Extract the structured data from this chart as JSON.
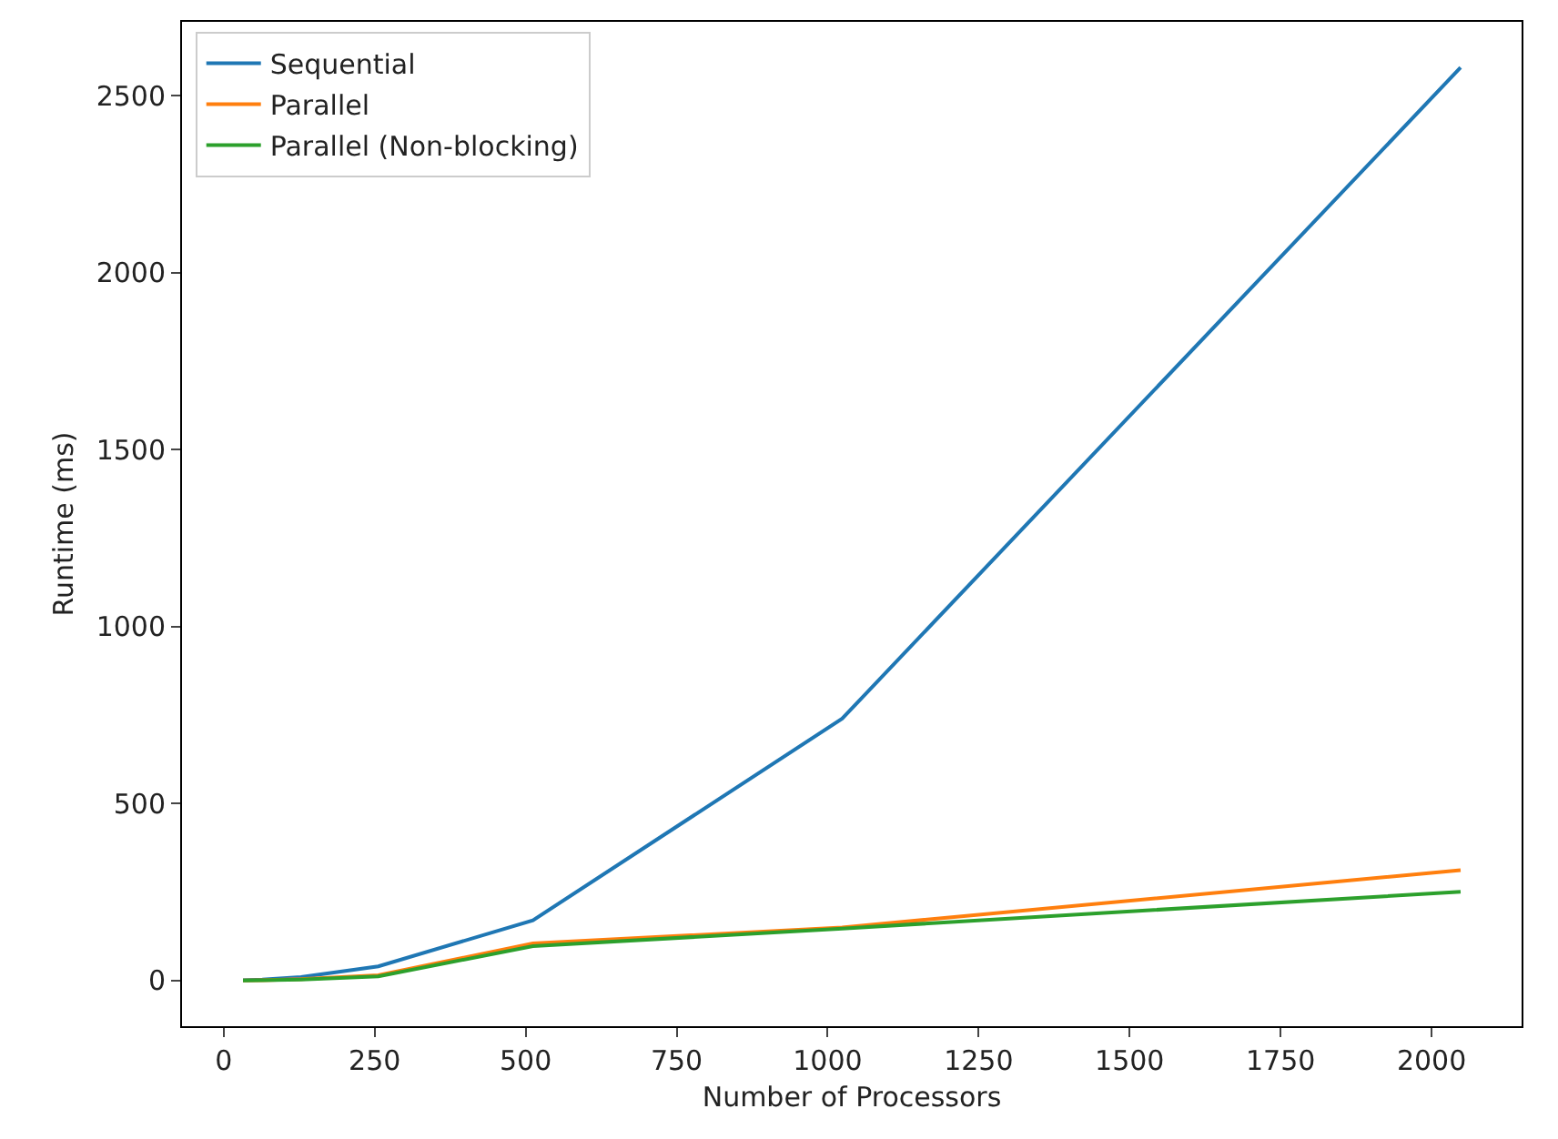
{
  "chart_data": {
    "type": "line",
    "xlabel": "Number of Processors",
    "ylabel": "Runtime (ms)",
    "x": [
      32,
      64,
      128,
      256,
      512,
      1024,
      2048
    ],
    "series": [
      {
        "name": "Sequential",
        "color": "#1f77b4",
        "values": [
          1,
          3,
          10,
          40,
          170,
          740,
          2580
        ]
      },
      {
        "name": "Parallel",
        "color": "#ff7f0e",
        "values": [
          0,
          1,
          4,
          15,
          105,
          150,
          312
        ]
      },
      {
        "name": "Parallel (Non-blocking)",
        "color": "#2ca02c",
        "values": [
          0,
          1,
          3,
          12,
          97,
          147,
          251
        ]
      }
    ],
    "xlim": [
      -69,
      2149
    ],
    "xticks": [
      0,
      250,
      500,
      750,
      1000,
      1250,
      1500,
      1750,
      2000
    ],
    "ylim": [
      -129,
      2709
    ],
    "yticks": [
      0,
      500,
      1000,
      1500,
      2000,
      2500
    ],
    "grid": false,
    "legend": "top left",
    "marker": "none",
    "line_style": "solid"
  }
}
